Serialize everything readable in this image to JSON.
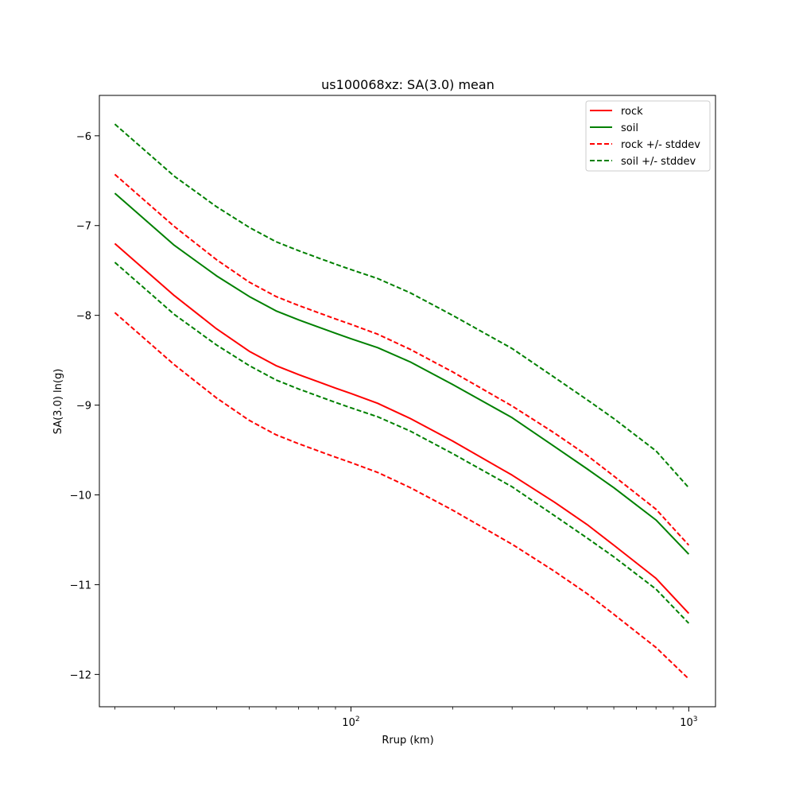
{
  "chart_data": {
    "type": "line",
    "title": "us100068xz: SA(3.0) mean",
    "xlabel": "Rrup (km)",
    "ylabel": "SA(3.0) ln(g)",
    "xscale": "log",
    "xlim": [
      18,
      1200
    ],
    "ylim": [
      -12.36,
      -5.55
    ],
    "grid": false,
    "legend_position": "top-right",
    "x_ticks": [
      {
        "value": 100,
        "base": "10",
        "exp": "2"
      },
      {
        "value": 1000,
        "base": "10",
        "exp": "3"
      }
    ],
    "y_ticks": [
      -6,
      -7,
      -8,
      -9,
      -10,
      -11,
      -12
    ],
    "y_tick_labels": [
      "−6",
      "−7",
      "−8",
      "−9",
      "−10",
      "−11",
      "−12"
    ],
    "x": [
      20,
      30,
      40,
      50,
      60,
      70,
      80,
      90,
      100,
      120,
      150,
      200,
      300,
      400,
      500,
      600,
      800,
      1000
    ],
    "series": [
      {
        "name": "rock",
        "color": "#ff0000",
        "dash": "solid",
        "values": [
          -7.2,
          -7.78,
          -8.15,
          -8.4,
          -8.56,
          -8.66,
          -8.74,
          -8.81,
          -8.87,
          -8.98,
          -9.15,
          -9.4,
          -9.78,
          -10.08,
          -10.33,
          -10.56,
          -10.93,
          -11.32
        ]
      },
      {
        "name": "soil",
        "color": "#008000",
        "dash": "solid",
        "values": [
          -6.64,
          -7.22,
          -7.56,
          -7.79,
          -7.95,
          -8.05,
          -8.13,
          -8.2,
          -8.26,
          -8.36,
          -8.52,
          -8.77,
          -9.14,
          -9.46,
          -9.71,
          -9.92,
          -10.28,
          -10.66
        ]
      },
      {
        "name": "rock +/- stddev",
        "color": "#ff0000",
        "dash": "dashed",
        "values": [
          -6.43,
          -7.01,
          -7.38,
          -7.63,
          -7.79,
          -7.89,
          -7.97,
          -8.04,
          -8.1,
          -8.21,
          -8.38,
          -8.63,
          -9.01,
          -9.31,
          -9.56,
          -9.79,
          -10.16,
          -10.56
        ]
      },
      {
        "name": "",
        "color": "#ff0000",
        "dash": "dashed",
        "values": [
          -7.97,
          -8.55,
          -8.92,
          -9.17,
          -9.33,
          -9.43,
          -9.51,
          -9.58,
          -9.64,
          -9.75,
          -9.92,
          -10.17,
          -10.55,
          -10.85,
          -11.1,
          -11.33,
          -11.7,
          -12.05
        ]
      },
      {
        "name": "soil +/- stddev",
        "color": "#008000",
        "dash": "dashed",
        "values": [
          -5.87,
          -6.45,
          -6.79,
          -7.02,
          -7.18,
          -7.28,
          -7.36,
          -7.43,
          -7.49,
          -7.59,
          -7.75,
          -8.0,
          -8.37,
          -8.69,
          -8.94,
          -9.15,
          -9.51,
          -9.92
        ]
      },
      {
        "name": "",
        "color": "#008000",
        "dash": "dashed",
        "values": [
          -7.41,
          -7.99,
          -8.33,
          -8.56,
          -8.72,
          -8.82,
          -8.9,
          -8.97,
          -9.03,
          -9.13,
          -9.29,
          -9.54,
          -9.91,
          -10.23,
          -10.48,
          -10.69,
          -11.05,
          -11.43
        ]
      }
    ],
    "legend": [
      {
        "label": "rock",
        "color": "#ff0000",
        "dash": "solid"
      },
      {
        "label": "soil",
        "color": "#008000",
        "dash": "solid"
      },
      {
        "label": "rock +/- stddev",
        "color": "#ff0000",
        "dash": "dashed"
      },
      {
        "label": "soil +/- stddev",
        "color": "#008000",
        "dash": "dashed"
      }
    ]
  }
}
